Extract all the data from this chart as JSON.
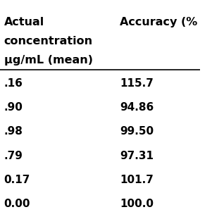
{
  "header_col1_line1": "Actual",
  "header_col1_line2": "concentration",
  "header_col1_line3": "μg/mL (mean)",
  "header_col2": "Accuracy (%",
  "col1_values": [
    ".16",
    ".90",
    ".98",
    ".79",
    "0.17",
    "0.00"
  ],
  "col2_values": [
    "115.7",
    "94.86",
    "99.50",
    "97.31",
    "101.7",
    "100.0"
  ],
  "bg_color": "#ffffff",
  "text_color": "#000000",
  "font_size": 11,
  "header_font_size": 11.5
}
